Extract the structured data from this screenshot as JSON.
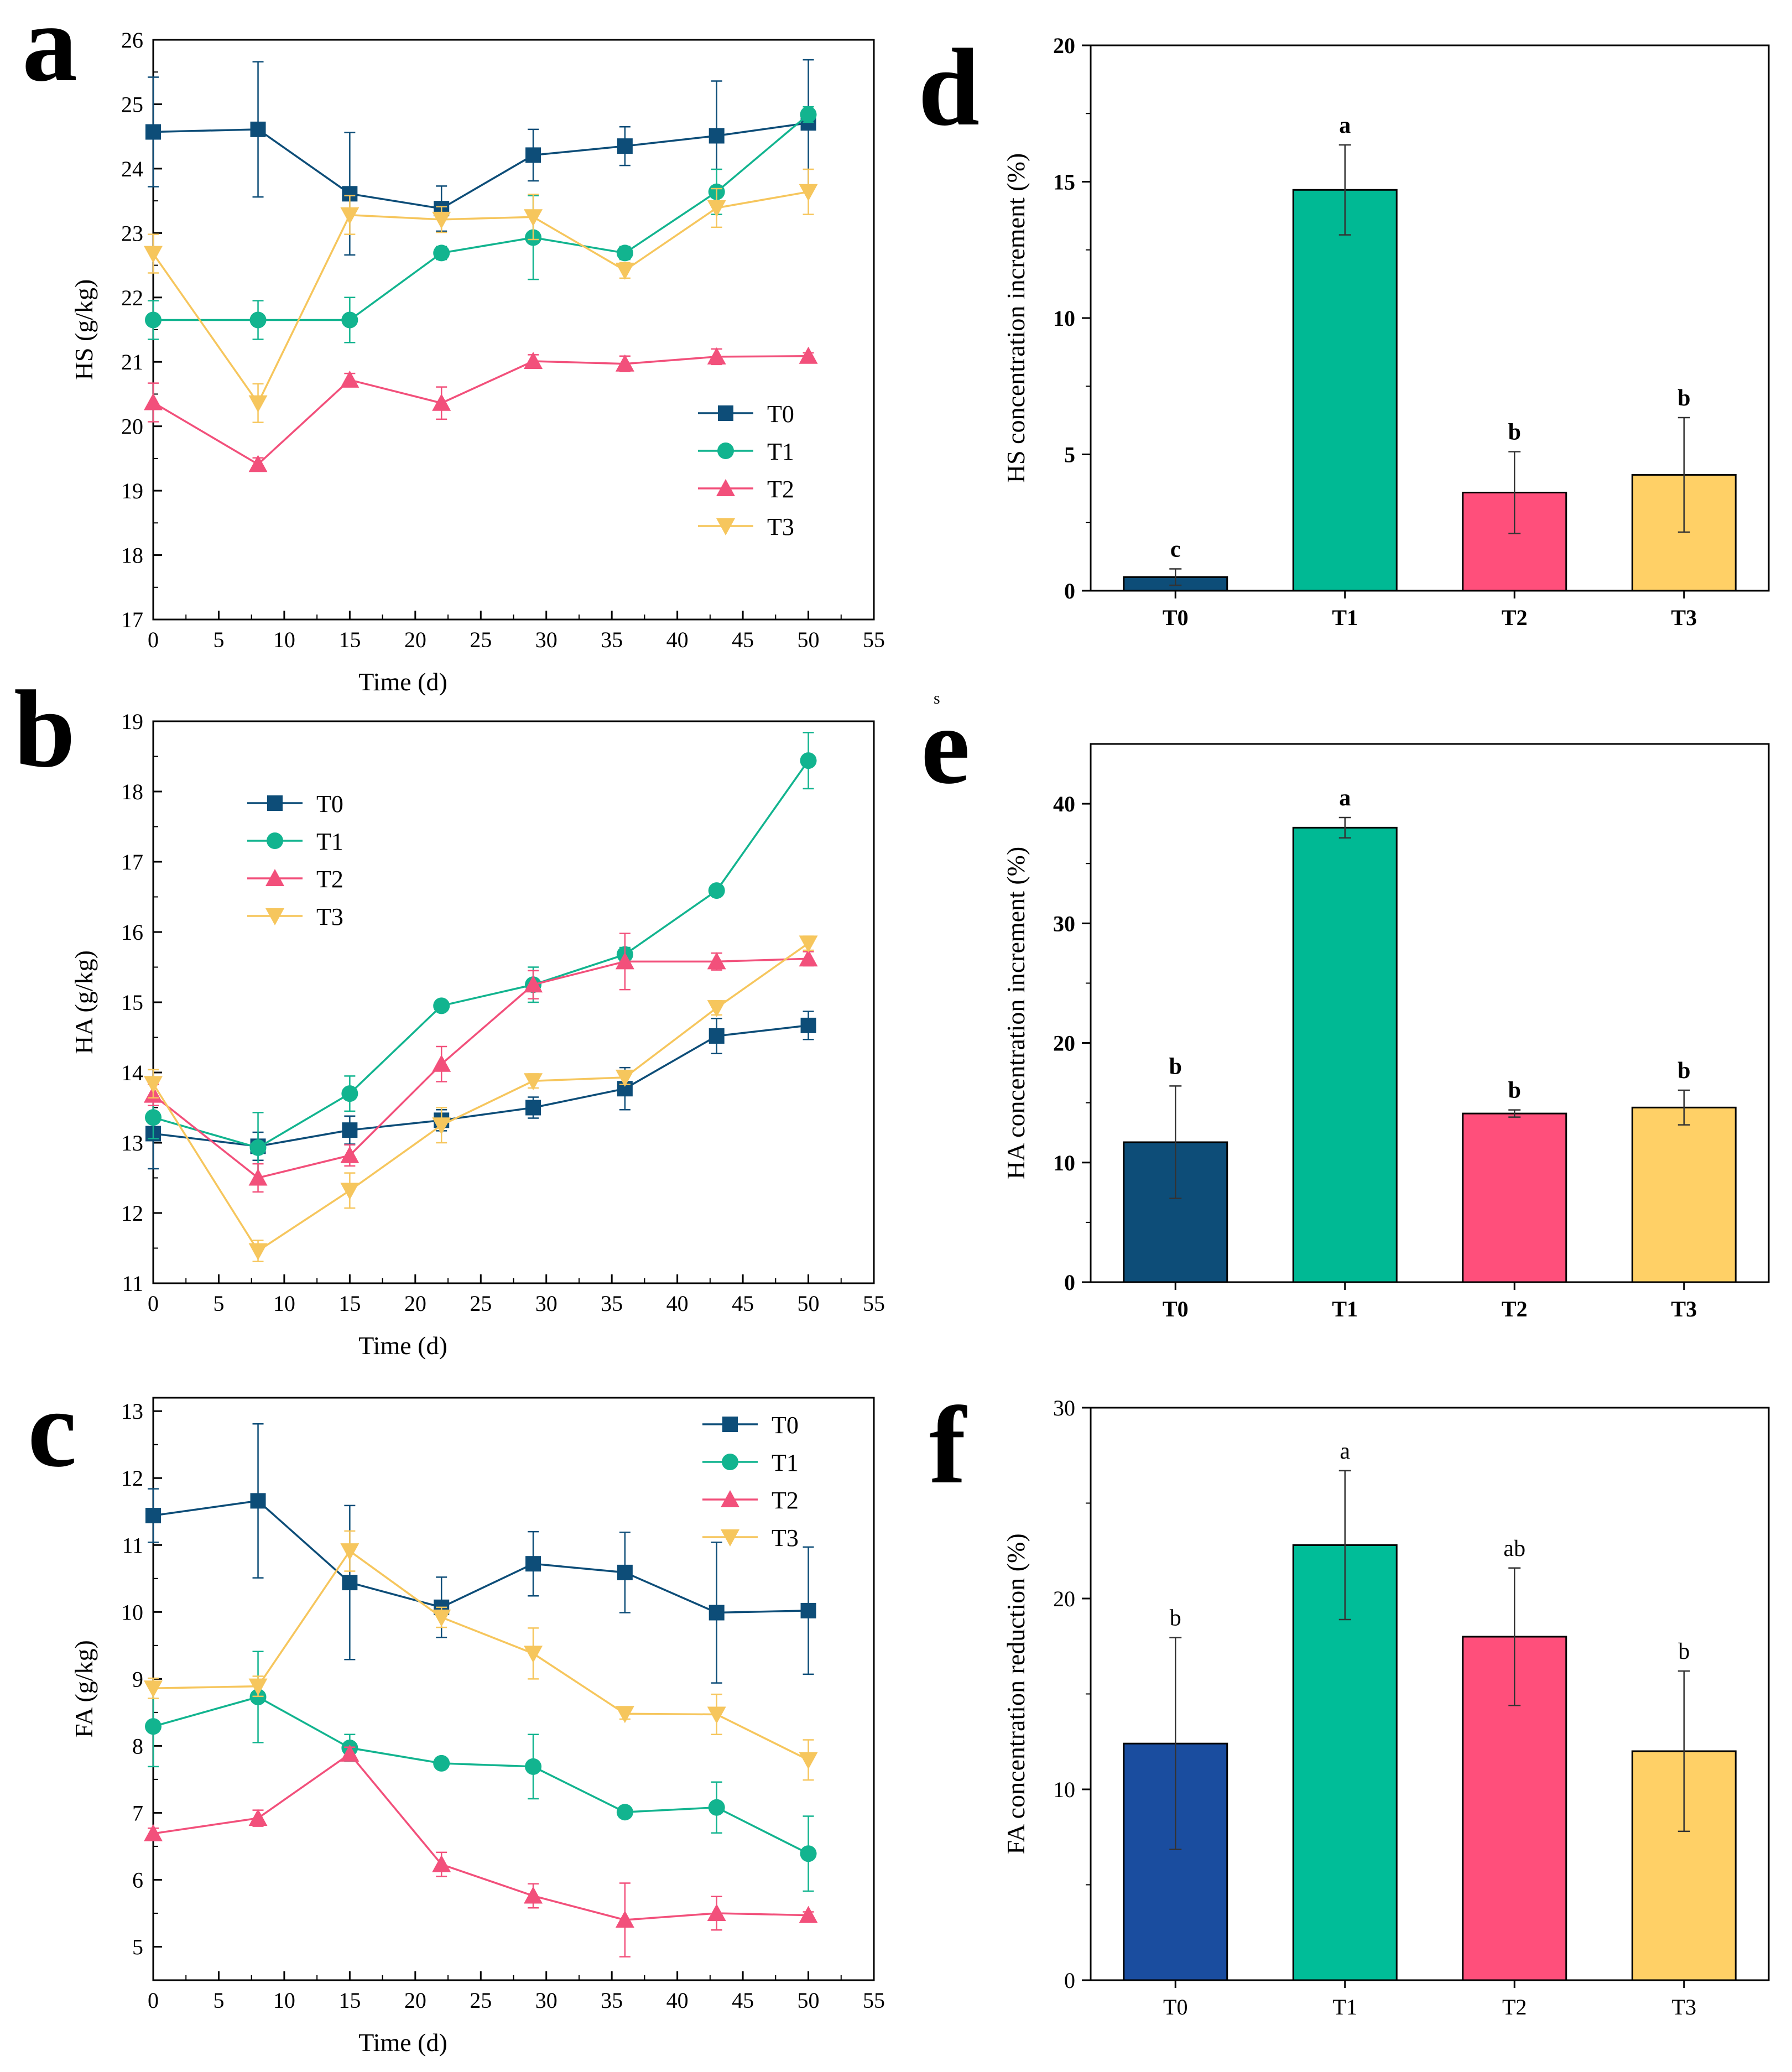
{
  "chart_data": [
    {
      "id": "a",
      "panel_label": "a",
      "type": "line",
      "xlabel": "Time (d)",
      "ylabel": "HS (g/kg)",
      "xlim": [
        0,
        55
      ],
      "ylim": [
        17,
        26
      ],
      "xticks": [
        0,
        5,
        10,
        15,
        20,
        25,
        30,
        35,
        40,
        45,
        50,
        55
      ],
      "yticks": [
        17,
        18,
        19,
        20,
        21,
        22,
        23,
        24,
        25,
        26
      ],
      "x": [
        0,
        8,
        15,
        22,
        29,
        36,
        43,
        50
      ],
      "legend_position": "lower-right",
      "series": [
        {
          "name": "T0",
          "color": "#0d4d78",
          "marker": "square",
          "values": [
            24.57,
            24.61,
            23.61,
            23.38,
            24.21,
            24.35,
            24.51,
            24.71
          ],
          "errors": [
            0.85,
            1.05,
            0.95,
            0.35,
            0.4,
            0.3,
            0.85,
            0.98
          ]
        },
        {
          "name": "T1",
          "color": "#12b48f",
          "marker": "circle",
          "values": [
            21.65,
            21.65,
            21.65,
            22.69,
            22.93,
            22.69,
            23.64,
            24.84
          ],
          "errors": [
            0.3,
            0.3,
            0.35,
            0.1,
            0.65,
            0.1,
            0.35,
            0.12
          ]
        },
        {
          "name": "T2",
          "color": "#f2507b",
          "marker": "triangle-up",
          "values": [
            20.37,
            19.41,
            20.72,
            20.36,
            21.01,
            20.97,
            21.08,
            21.09
          ],
          "errors": [
            0.3,
            0.1,
            0.1,
            0.25,
            0.1,
            0.12,
            0.12,
            0.05
          ]
        },
        {
          "name": "T3",
          "color": "#f6c65d",
          "marker": "triangle-down",
          "values": [
            22.68,
            20.36,
            23.28,
            23.21,
            23.25,
            22.42,
            23.39,
            23.64
          ],
          "errors": [
            0.3,
            0.3,
            0.3,
            0.2,
            0.35,
            0.12,
            0.3,
            0.35
          ]
        }
      ]
    },
    {
      "id": "b",
      "panel_label": "b",
      "type": "line",
      "xlabel": "Time (d)",
      "ylabel": "HA (g/kg)",
      "xlim": [
        0,
        55
      ],
      "ylim": [
        11,
        19
      ],
      "xticks": [
        0,
        5,
        10,
        15,
        20,
        25,
        30,
        35,
        40,
        45,
        50,
        55
      ],
      "yticks": [
        11,
        12,
        13,
        14,
        15,
        16,
        17,
        18,
        19
      ],
      "x": [
        0,
        8,
        15,
        22,
        29,
        36,
        43,
        50
      ],
      "legend_position": "top-left",
      "series": [
        {
          "name": "T0",
          "color": "#0d4d78",
          "marker": "square",
          "values": [
            13.13,
            12.95,
            13.18,
            13.32,
            13.5,
            13.77,
            14.52,
            14.67
          ],
          "errors": [
            0.5,
            0.2,
            0.2,
            0.15,
            0.15,
            0.3,
            0.25,
            0.2
          ]
        },
        {
          "name": "T1",
          "color": "#12b48f",
          "marker": "circle",
          "values": [
            13.36,
            12.93,
            13.7,
            14.95,
            15.25,
            15.68,
            16.59,
            18.44
          ],
          "errors": [
            0.3,
            0.5,
            0.25,
            0.05,
            0.25,
            0.1,
            0.05,
            0.4
          ]
        },
        {
          "name": "T2",
          "color": "#f2507b",
          "marker": "triangle-up",
          "values": [
            13.68,
            12.5,
            12.82,
            14.12,
            15.25,
            15.58,
            15.58,
            15.62
          ],
          "errors": [
            0.15,
            0.2,
            0.15,
            0.25,
            0.2,
            0.4,
            0.12,
            0.1
          ]
        },
        {
          "name": "T3",
          "color": "#f6c65d",
          "marker": "triangle-down",
          "values": [
            13.84,
            11.46,
            12.32,
            13.25,
            13.88,
            13.93,
            14.92,
            15.84
          ],
          "errors": [
            0.2,
            0.15,
            0.25,
            0.25,
            0.1,
            0.1,
            0.1,
            0.1
          ]
        }
      ]
    },
    {
      "id": "c",
      "panel_label": "c",
      "type": "line",
      "xlabel": "Time (d)",
      "ylabel": "FA (g/kg)",
      "xlim": [
        0,
        55
      ],
      "ylim": [
        4.5,
        13.2
      ],
      "xticks": [
        0,
        5,
        10,
        15,
        20,
        25,
        30,
        35,
        40,
        45,
        50,
        55
      ],
      "yticks": [
        5,
        6,
        7,
        8,
        9,
        10,
        11,
        12,
        13
      ],
      "x": [
        0,
        8,
        15,
        22,
        29,
        36,
        43,
        50
      ],
      "legend_position": "top-right",
      "series": [
        {
          "name": "T0",
          "color": "#0d4d78",
          "marker": "square",
          "values": [
            11.44,
            11.66,
            10.44,
            10.07,
            10.72,
            10.59,
            9.99,
            10.02
          ],
          "errors": [
            0.4,
            1.15,
            1.15,
            0.45,
            0.48,
            0.6,
            1.05,
            0.95
          ]
        },
        {
          "name": "T1",
          "color": "#12b48f",
          "marker": "circle",
          "values": [
            8.29,
            8.73,
            7.97,
            7.74,
            7.69,
            7.01,
            7.08,
            6.39
          ],
          "errors": [
            0.6,
            0.68,
            0.2,
            0.08,
            0.48,
            0.08,
            0.38,
            0.56
          ]
        },
        {
          "name": "T2",
          "color": "#f2507b",
          "marker": "triangle-up",
          "values": [
            6.69,
            6.92,
            7.88,
            6.23,
            5.76,
            5.4,
            5.5,
            5.47
          ],
          "errors": [
            0.08,
            0.12,
            0.1,
            0.18,
            0.18,
            0.55,
            0.25,
            0.05
          ]
        },
        {
          "name": "T3",
          "color": "#f6c65d",
          "marker": "triangle-down",
          "values": [
            8.86,
            8.89,
            10.91,
            9.92,
            9.38,
            8.48,
            8.47,
            7.79
          ],
          "errors": [
            0.15,
            0.15,
            0.3,
            0.15,
            0.38,
            0.08,
            0.3,
            0.3
          ]
        }
      ]
    },
    {
      "id": "d",
      "panel_label": "d",
      "type": "bar",
      "xlabel": "",
      "ylabel": "HS concentration increment (%)",
      "ylim": [
        0,
        20
      ],
      "yticks": [
        0,
        5,
        10,
        15,
        20
      ],
      "categories": [
        "T0",
        "T1",
        "T2",
        "T3"
      ],
      "values": [
        0.5,
        14.7,
        3.6,
        4.25
      ],
      "errors": [
        0.3,
        1.65,
        1.5,
        2.1
      ],
      "significance": [
        "c",
        "a",
        "b",
        "b"
      ],
      "colors": [
        "#0d4d78",
        "#00b994",
        "#ff4f7b",
        "#ffd066"
      ],
      "bold_text": true
    },
    {
      "id": "e",
      "panel_label": "e",
      "type": "bar",
      "xlabel": "",
      "ylabel": "HA concentration increment (%)",
      "ylim": [
        0,
        45
      ],
      "yticks": [
        0,
        10,
        20,
        30,
        40
      ],
      "categories": [
        "T0",
        "T1",
        "T2",
        "T3"
      ],
      "values": [
        11.7,
        38.0,
        14.1,
        14.6
      ],
      "errors": [
        4.7,
        0.85,
        0.3,
        1.45
      ],
      "significance": [
        "b",
        "a",
        "b",
        "b"
      ],
      "colors": [
        "#0d4d78",
        "#00b994",
        "#ff4f7b",
        "#ffd066"
      ],
      "bold_text": true
    },
    {
      "id": "f",
      "panel_label": "f",
      "type": "bar",
      "xlabel": "",
      "ylabel": "FA concentration reduction (%)",
      "ylim": [
        0,
        30
      ],
      "yticks": [
        0,
        10,
        20,
        30
      ],
      "categories": [
        "T0",
        "T1",
        "T2",
        "T3"
      ],
      "values": [
        12.4,
        22.8,
        18.0,
        12.0
      ],
      "errors": [
        5.55,
        3.9,
        3.6,
        4.2
      ],
      "significance": [
        "b",
        "a",
        "ab",
        "b"
      ],
      "colors": [
        "#1a4d9f",
        "#00bd98",
        "#ff4f7b",
        "#ffd066"
      ],
      "bold_text": false
    }
  ],
  "stray_mark": "s"
}
